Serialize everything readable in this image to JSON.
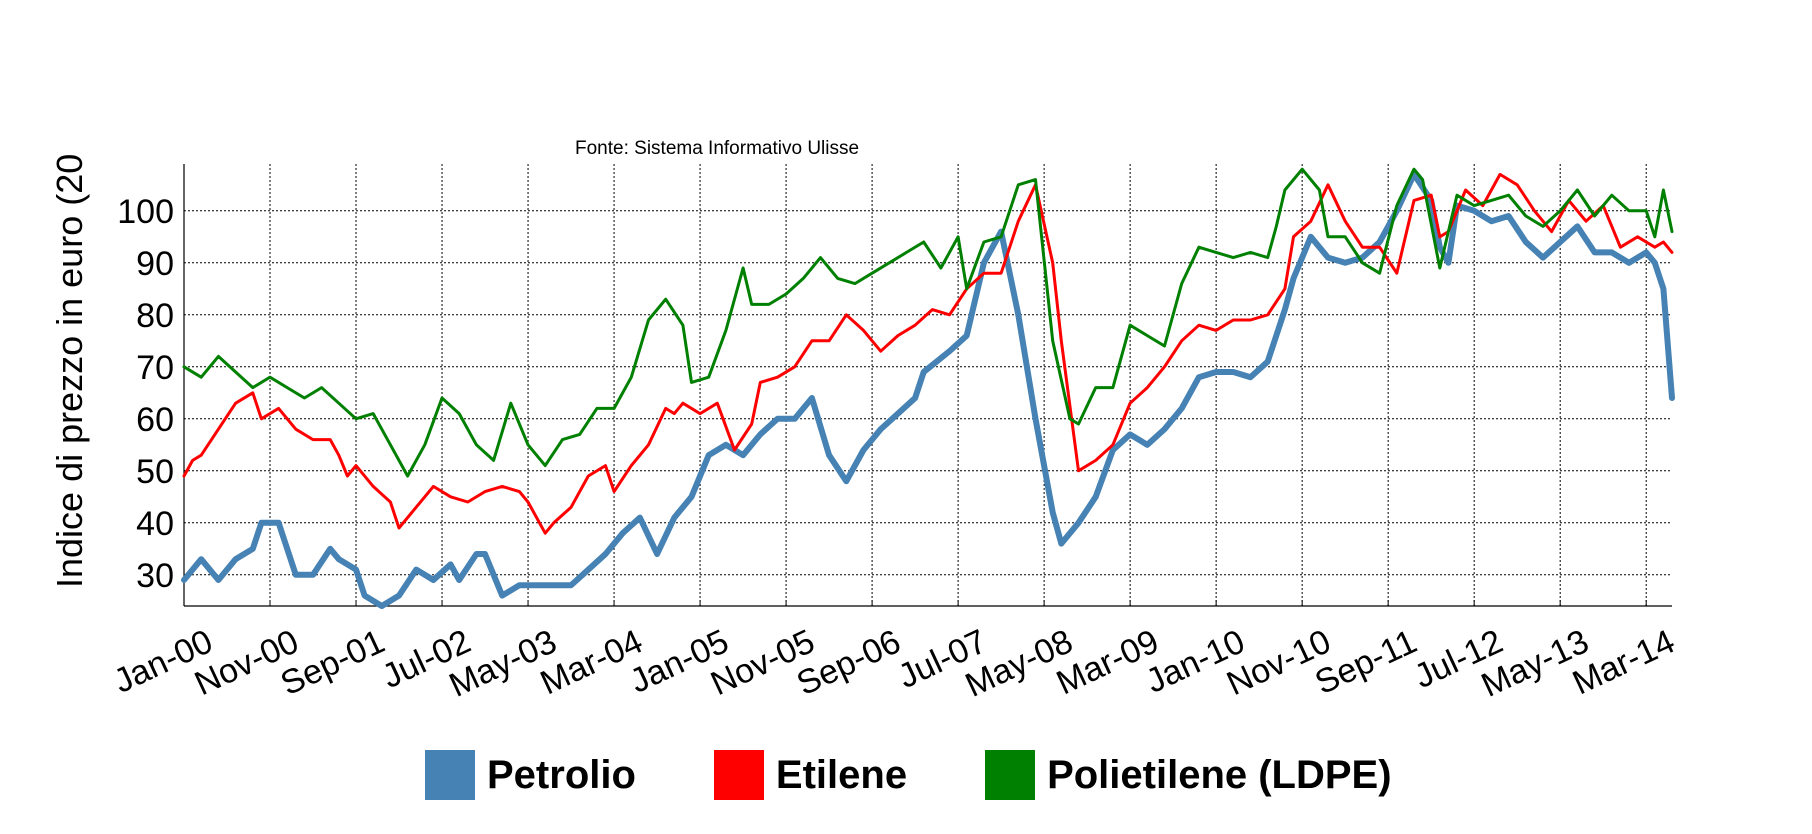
{
  "chart_data": {
    "type": "line",
    "subtitle": "Fonte: Sistema Informativo Ulisse",
    "ylabel": "Indice di prezzo in euro (20",
    "xlabel": "",
    "ylim": [
      24,
      109
    ],
    "yticks": [
      30,
      40,
      50,
      60,
      70,
      80,
      90,
      100
    ],
    "grid": true,
    "legend_position": "bottom",
    "x_start": "Jan-00",
    "x_end": "Jun-14",
    "xtick_labels": [
      "Jan-00",
      "Nov-00",
      "Sep-01",
      "Jul-02",
      "May-03",
      "Mar-04",
      "Jan-05",
      "Nov-05",
      "Sep-06",
      "Jul-07",
      "May-08",
      "Mar-09",
      "Jan-10",
      "Nov-10",
      "Sep-11",
      "Jul-12",
      "May-13",
      "Mar-14"
    ],
    "series": [
      {
        "name": "Petrolio",
        "color": "#4682b4",
        "points": [
          [
            "Jan-00",
            29
          ],
          [
            "Mar-00",
            33
          ],
          [
            "May-00",
            29
          ],
          [
            "Jul-00",
            33
          ],
          [
            "Sep-00",
            35
          ],
          [
            "Oct-00",
            40
          ],
          [
            "Dec-00",
            40
          ],
          [
            "Feb-01",
            30
          ],
          [
            "Apr-01",
            30
          ],
          [
            "Jun-01",
            35
          ],
          [
            "Jul-01",
            33
          ],
          [
            "Sep-01",
            31
          ],
          [
            "Oct-01",
            26
          ],
          [
            "Dec-01",
            24
          ],
          [
            "Feb-02",
            26
          ],
          [
            "Apr-02",
            31
          ],
          [
            "Jun-02",
            29
          ],
          [
            "Aug-02",
            32
          ],
          [
            "Sep-02",
            29
          ],
          [
            "Nov-02",
            34
          ],
          [
            "Dec-02",
            34
          ],
          [
            "Feb-03",
            26
          ],
          [
            "Apr-03",
            28
          ],
          [
            "Jun-03",
            28
          ],
          [
            "Aug-03",
            28
          ],
          [
            "Oct-03",
            28
          ],
          [
            "Dec-03",
            31
          ],
          [
            "Feb-04",
            34
          ],
          [
            "Apr-04",
            38
          ],
          [
            "Jun-04",
            41
          ],
          [
            "Aug-04",
            34
          ],
          [
            "Oct-04",
            41
          ],
          [
            "Nov-04",
            43
          ],
          [
            "Dec-04",
            45
          ],
          [
            "Feb-05",
            53
          ],
          [
            "Apr-05",
            55
          ],
          [
            "Jun-05",
            53
          ],
          [
            "Aug-05",
            57
          ],
          [
            "Oct-05",
            60
          ],
          [
            "Dec-05",
            60
          ],
          [
            "Feb-06",
            64
          ],
          [
            "Apr-06",
            53
          ],
          [
            "Jun-06",
            48
          ],
          [
            "Aug-06",
            54
          ],
          [
            "Oct-06",
            58
          ],
          [
            "Dec-06",
            61
          ],
          [
            "Feb-07",
            64
          ],
          [
            "Mar-07",
            69
          ],
          [
            "Jun-07",
            73
          ],
          [
            "Aug-07",
            76
          ],
          [
            "Oct-07",
            90
          ],
          [
            "Dec-07",
            96
          ],
          [
            "Feb-08",
            80
          ],
          [
            "Apr-08",
            60
          ],
          [
            "Jun-08",
            42
          ],
          [
            "Jul-08",
            36
          ],
          [
            "Sep-08",
            40
          ],
          [
            "Nov-08",
            45
          ],
          [
            "Jan-09",
            54
          ],
          [
            "Mar-09",
            57
          ],
          [
            "May-09",
            55
          ],
          [
            "Jul-09",
            58
          ],
          [
            "Sep-09",
            62
          ],
          [
            "Nov-09",
            68
          ],
          [
            "Jan-10",
            69
          ],
          [
            "Mar-10",
            69
          ],
          [
            "May-10",
            68
          ],
          [
            "Jul-10",
            71
          ],
          [
            "Sep-10",
            81
          ],
          [
            "Oct-10",
            87
          ],
          [
            "Dec-10",
            95
          ],
          [
            "Feb-11",
            91
          ],
          [
            "Apr-11",
            90
          ],
          [
            "Jun-11",
            91
          ],
          [
            "Aug-11",
            94
          ],
          [
            "Oct-11",
            100
          ],
          [
            "Dec-11",
            107
          ],
          [
            "Feb-12",
            102
          ],
          [
            "Mar-12",
            93
          ],
          [
            "Apr-12",
            90
          ],
          [
            "May-12",
            101
          ],
          [
            "Jul-12",
            100
          ],
          [
            "Sep-12",
            98
          ],
          [
            "Nov-12",
            99
          ],
          [
            "Jan-13",
            94
          ],
          [
            "Mar-13",
            91
          ],
          [
            "May-13",
            94
          ],
          [
            "Jul-13",
            97
          ],
          [
            "Sep-13",
            92
          ],
          [
            "Nov-13",
            92
          ],
          [
            "Jan-14",
            90
          ],
          [
            "Mar-14",
            92
          ],
          [
            "Apr-14",
            90
          ],
          [
            "May-14",
            85
          ],
          [
            "Jun-14",
            64
          ]
        ]
      },
      {
        "name": "Etilene",
        "color": "#ff0000",
        "points": [
          [
            "Jan-00",
            49
          ],
          [
            "Feb-00",
            52
          ],
          [
            "Mar-00",
            53
          ],
          [
            "May-00",
            58
          ],
          [
            "Jul-00",
            63
          ],
          [
            "Sep-00",
            65
          ],
          [
            "Oct-00",
            60
          ],
          [
            "Dec-00",
            62
          ],
          [
            "Feb-01",
            58
          ],
          [
            "Apr-01",
            56
          ],
          [
            "Jun-01",
            56
          ],
          [
            "Jul-01",
            53
          ],
          [
            "Aug-01",
            49
          ],
          [
            "Sep-01",
            51
          ],
          [
            "Nov-01",
            47
          ],
          [
            "Jan-02",
            44
          ],
          [
            "Feb-02",
            39
          ],
          [
            "Apr-02",
            43
          ],
          [
            "Jun-02",
            47
          ],
          [
            "Aug-02",
            45
          ],
          [
            "Oct-02",
            44
          ],
          [
            "Dec-02",
            46
          ],
          [
            "Feb-03",
            47
          ],
          [
            "Apr-03",
            46
          ],
          [
            "May-03",
            44
          ],
          [
            "Jul-03",
            38
          ],
          [
            "Aug-03",
            40
          ],
          [
            "Oct-03",
            43
          ],
          [
            "Dec-03",
            49
          ],
          [
            "Feb-04",
            51
          ],
          [
            "Mar-04",
            46
          ],
          [
            "May-04",
            51
          ],
          [
            "Jul-04",
            55
          ],
          [
            "Sep-04",
            62
          ],
          [
            "Oct-04",
            61
          ],
          [
            "Nov-04",
            63
          ],
          [
            "Jan-05",
            61
          ],
          [
            "Mar-05",
            63
          ],
          [
            "May-05",
            54
          ],
          [
            "Jul-05",
            59
          ],
          [
            "Aug-05",
            67
          ],
          [
            "Oct-05",
            68
          ],
          [
            "Dec-05",
            70
          ],
          [
            "Feb-06",
            75
          ],
          [
            "Apr-06",
            75
          ],
          [
            "Jun-06",
            80
          ],
          [
            "Aug-06",
            77
          ],
          [
            "Oct-06",
            73
          ],
          [
            "Dec-06",
            76
          ],
          [
            "Feb-07",
            78
          ],
          [
            "Apr-07",
            81
          ],
          [
            "Jun-07",
            80
          ],
          [
            "Aug-07",
            85
          ],
          [
            "Oct-07",
            88
          ],
          [
            "Dec-07",
            88
          ],
          [
            "Feb-08",
            98
          ],
          [
            "Apr-08",
            105
          ],
          [
            "Jun-08",
            90
          ],
          [
            "Jul-08",
            75
          ],
          [
            "Sep-08",
            50
          ],
          [
            "Nov-08",
            52
          ],
          [
            "Jan-09",
            55
          ],
          [
            "Mar-09",
            63
          ],
          [
            "May-09",
            66
          ],
          [
            "Jul-09",
            70
          ],
          [
            "Sep-09",
            75
          ],
          [
            "Nov-09",
            78
          ],
          [
            "Jan-10",
            77
          ],
          [
            "Mar-10",
            79
          ],
          [
            "May-10",
            79
          ],
          [
            "Jul-10",
            80
          ],
          [
            "Sep-10",
            85
          ],
          [
            "Oct-10",
            95
          ],
          [
            "Dec-10",
            98
          ],
          [
            "Feb-11",
            105
          ],
          [
            "Apr-11",
            98
          ],
          [
            "Jun-11",
            93
          ],
          [
            "Aug-11",
            93
          ],
          [
            "Oct-11",
            88
          ],
          [
            "Dec-11",
            102
          ],
          [
            "Feb-12",
            103
          ],
          [
            "Mar-12",
            95
          ],
          [
            "Apr-12",
            96
          ],
          [
            "Jun-12",
            104
          ],
          [
            "Aug-12",
            101
          ],
          [
            "Oct-12",
            107
          ],
          [
            "Dec-12",
            105
          ],
          [
            "Feb-13",
            100
          ],
          [
            "Apr-13",
            96
          ],
          [
            "Jun-13",
            102
          ],
          [
            "Aug-13",
            98
          ],
          [
            "Oct-13",
            101
          ],
          [
            "Dec-13",
            93
          ],
          [
            "Feb-14",
            95
          ],
          [
            "Apr-14",
            93
          ],
          [
            "May-14",
            94
          ],
          [
            "Jun-14",
            92
          ]
        ]
      },
      {
        "name": "Polietilene (LDPE)",
        "color": "#008000",
        "points": [
          [
            "Jan-00",
            70
          ],
          [
            "Mar-00",
            68
          ],
          [
            "May-00",
            72
          ],
          [
            "Jul-00",
            69
          ],
          [
            "Sep-00",
            66
          ],
          [
            "Nov-00",
            68
          ],
          [
            "Jan-01",
            66
          ],
          [
            "Mar-01",
            64
          ],
          [
            "May-01",
            66
          ],
          [
            "Jul-01",
            63
          ],
          [
            "Sep-01",
            60
          ],
          [
            "Nov-01",
            61
          ],
          [
            "Jan-02",
            55
          ],
          [
            "Mar-02",
            49
          ],
          [
            "May-02",
            55
          ],
          [
            "Jul-02",
            64
          ],
          [
            "Sep-02",
            61
          ],
          [
            "Nov-02",
            55
          ],
          [
            "Jan-03",
            52
          ],
          [
            "Mar-03",
            63
          ],
          [
            "May-03",
            55
          ],
          [
            "Jul-03",
            51
          ],
          [
            "Sep-03",
            56
          ],
          [
            "Nov-03",
            57
          ],
          [
            "Jan-04",
            62
          ],
          [
            "Mar-04",
            62
          ],
          [
            "May-04",
            68
          ],
          [
            "Jul-04",
            79
          ],
          [
            "Sep-04",
            83
          ],
          [
            "Nov-04",
            78
          ],
          [
            "Dec-04",
            67
          ],
          [
            "Feb-05",
            68
          ],
          [
            "Apr-05",
            77
          ],
          [
            "Jun-05",
            89
          ],
          [
            "Jul-05",
            82
          ],
          [
            "Sep-05",
            82
          ],
          [
            "Nov-05",
            84
          ],
          [
            "Jan-06",
            87
          ],
          [
            "Mar-06",
            91
          ],
          [
            "May-06",
            87
          ],
          [
            "Jul-06",
            86
          ],
          [
            "Sep-06",
            88
          ],
          [
            "Nov-06",
            90
          ],
          [
            "Jan-07",
            92
          ],
          [
            "Mar-07",
            94
          ],
          [
            "May-07",
            89
          ],
          [
            "Jul-07",
            95
          ],
          [
            "Aug-07",
            85
          ],
          [
            "Oct-07",
            94
          ],
          [
            "Dec-07",
            95
          ],
          [
            "Feb-08",
            105
          ],
          [
            "Apr-08",
            106
          ],
          [
            "Jun-08",
            75
          ],
          [
            "Aug-08",
            60
          ],
          [
            "Sep-08",
            59
          ],
          [
            "Nov-08",
            66
          ],
          [
            "Jan-09",
            66
          ],
          [
            "Mar-09",
            78
          ],
          [
            "May-09",
            76
          ],
          [
            "Jul-09",
            74
          ],
          [
            "Sep-09",
            86
          ],
          [
            "Nov-09",
            93
          ],
          [
            "Jan-10",
            92
          ],
          [
            "Mar-10",
            91
          ],
          [
            "May-10",
            92
          ],
          [
            "Jul-10",
            91
          ],
          [
            "Aug-10",
            97
          ],
          [
            "Sep-10",
            104
          ],
          [
            "Nov-10",
            108
          ],
          [
            "Jan-11",
            104
          ],
          [
            "Feb-11",
            95
          ],
          [
            "Apr-11",
            95
          ],
          [
            "Jun-11",
            90
          ],
          [
            "Aug-11",
            88
          ],
          [
            "Oct-11",
            101
          ],
          [
            "Dec-11",
            108
          ],
          [
            "Jan-12",
            106
          ],
          [
            "Mar-12",
            89
          ],
          [
            "May-12",
            103
          ],
          [
            "Jul-12",
            101
          ],
          [
            "Sep-12",
            102
          ],
          [
            "Nov-12",
            103
          ],
          [
            "Jan-13",
            99
          ],
          [
            "Mar-13",
            97
          ],
          [
            "May-13",
            100
          ],
          [
            "Jul-13",
            104
          ],
          [
            "Sep-13",
            99
          ],
          [
            "Nov-13",
            103
          ],
          [
            "Jan-14",
            100
          ],
          [
            "Mar-14",
            100
          ],
          [
            "Apr-14",
            95
          ],
          [
            "May-14",
            104
          ],
          [
            "Jun-14",
            96
          ]
        ]
      }
    ]
  }
}
